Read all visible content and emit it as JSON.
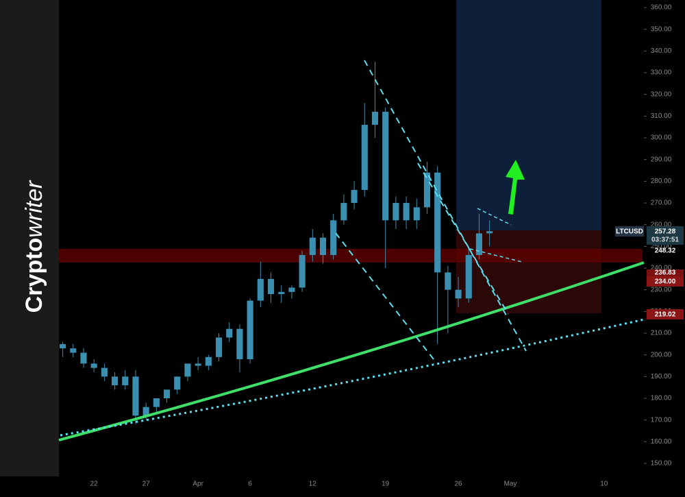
{
  "watermark": {
    "bold": "Crypto",
    "italic": "writer"
  },
  "chart_data": {
    "type": "candlestick",
    "symbol": "LTCUSD",
    "color": "#3b8fb0",
    "categories": [
      null,
      null,
      null,
      "22",
      null,
      null,
      null,
      null,
      "27",
      null,
      null,
      null,
      null,
      "Apr",
      null,
      null,
      null,
      null,
      "6",
      null,
      null,
      null,
      null,
      null,
      "12",
      null,
      null,
      null,
      null,
      null,
      null,
      "19",
      null,
      null,
      null,
      null,
      null,
      null,
      "26",
      null,
      null,
      null,
      null,
      "May",
      null,
      null,
      null,
      null,
      null,
      null,
      null,
      null,
      "10",
      null,
      null,
      null
    ],
    "open": [
      205,
      203,
      201,
      196,
      194,
      190,
      186,
      190,
      172,
      176,
      180,
      184,
      190,
      196,
      195,
      199,
      208,
      212,
      198,
      225,
      235,
      228,
      229,
      231,
      246,
      254,
      246,
      262,
      270,
      276,
      306,
      312,
      262,
      270,
      262,
      268,
      284,
      238,
      230,
      226,
      246,
      256,
      null,
      null,
      null,
      null,
      null,
      null,
      null,
      null,
      null,
      null,
      null,
      null,
      null,
      null
    ],
    "high": [
      206,
      205,
      203,
      198,
      196,
      192,
      193,
      193,
      178,
      180,
      184,
      190,
      196,
      199,
      200,
      210,
      215,
      214,
      226,
      243,
      238,
      232,
      232,
      248,
      258,
      256,
      265,
      274,
      280,
      316,
      335,
      314,
      273,
      273,
      272,
      289,
      287,
      241,
      236,
      249,
      265,
      262,
      null,
      null,
      null,
      null,
      null,
      null,
      null,
      null,
      null,
      null,
      null,
      null,
      null,
      null
    ],
    "low": [
      199,
      199,
      194,
      192,
      188,
      184,
      184,
      168,
      170,
      173,
      178,
      182,
      188,
      193,
      193,
      197,
      206,
      192,
      196,
      222,
      224,
      224,
      226,
      229,
      243,
      242,
      244,
      260,
      267,
      273,
      300,
      240,
      258,
      258,
      258,
      265,
      205,
      210,
      222,
      224,
      244,
      250,
      null,
      null,
      null,
      null,
      null,
      null,
      null,
      null,
      null,
      null,
      null,
      null,
      null,
      null
    ],
    "close": [
      203,
      201,
      196,
      194,
      190,
      186,
      190,
      172,
      176,
      180,
      184,
      190,
      196,
      195,
      199,
      208,
      212,
      198,
      225,
      235,
      228,
      229,
      231,
      246,
      254,
      246,
      262,
      270,
      276,
      306,
      312,
      262,
      270,
      262,
      268,
      284,
      238,
      230,
      226,
      246,
      256,
      257,
      null,
      null,
      null,
      null,
      null,
      null,
      null,
      null,
      null,
      null,
      null,
      null,
      null,
      null
    ],
    "ylim": [
      144,
      363.5
    ],
    "yticks": [
      {
        "value": 150,
        "label": "150.00"
      },
      {
        "value": 160,
        "label": "160.00"
      },
      {
        "value": 170,
        "label": "170.00"
      },
      {
        "value": 180,
        "label": "180.00"
      },
      {
        "value": 190,
        "label": "190.00"
      },
      {
        "value": 200,
        "label": "200.00"
      },
      {
        "value": 210,
        "label": "210.00"
      },
      {
        "value": 220,
        "label": "220.00"
      },
      {
        "value": 230,
        "label": "230.00"
      },
      {
        "value": 240,
        "label": "240.00"
      },
      {
        "value": 250,
        "label": "250.00"
      },
      {
        "value": 260,
        "label": "260.00"
      },
      {
        "value": 270,
        "label": "270.00"
      },
      {
        "value": 280,
        "label": "280.00"
      },
      {
        "value": 290,
        "label": "290.00"
      },
      {
        "value": 300,
        "label": "300.00"
      },
      {
        "value": 310,
        "label": "310.00"
      },
      {
        "value": 320,
        "label": "320.00"
      },
      {
        "value": 330,
        "label": "330.00"
      },
      {
        "value": 340,
        "label": "340.00"
      },
      {
        "value": 350,
        "label": "350.00"
      },
      {
        "value": 360,
        "label": "360.00"
      }
    ],
    "price_labels": {
      "last": "257.28",
      "countdown": "03:37:51",
      "level1": "248.32",
      "level2": "236.83",
      "level3": "234.00",
      "level4": "219.02"
    }
  }
}
